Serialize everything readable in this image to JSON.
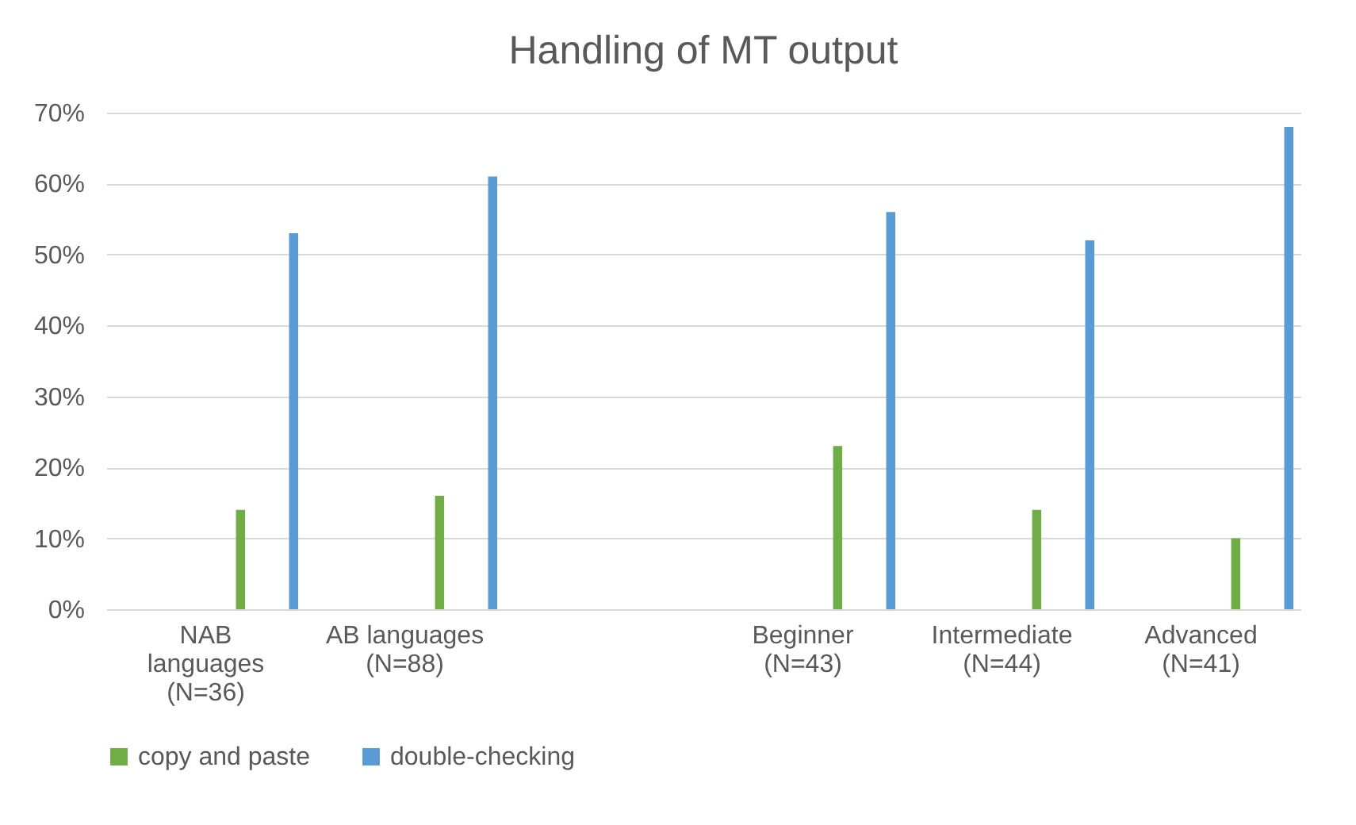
{
  "chart_data": {
    "type": "bar",
    "title": "Handling of MT output",
    "categories": [
      "NAB languages (N=36)",
      "AB languages (N=88)",
      null,
      "Beginner (N=43)",
      "Intermediate (N=44)",
      "Advanced (N=41)"
    ],
    "series": [
      {
        "name": "copy and paste",
        "color": "#70ad47",
        "values": [
          14,
          16,
          null,
          23,
          14,
          10
        ]
      },
      {
        "name": "double-checking",
        "color": "#5b9bd5",
        "values": [
          53,
          61,
          null,
          56,
          52,
          68
        ]
      }
    ],
    "ylim": [
      0,
      70
    ],
    "yticks": [
      {
        "value": 0,
        "label": "0%"
      },
      {
        "value": 10,
        "label": "10%"
      },
      {
        "value": 20,
        "label": "20%"
      },
      {
        "value": 30,
        "label": "30%"
      },
      {
        "value": 40,
        "label": "40%"
      },
      {
        "value": 50,
        "label": "50%"
      },
      {
        "value": 60,
        "label": "60%"
      },
      {
        "value": 70,
        "label": "70%"
      }
    ],
    "grid": "y",
    "legend": "bottom"
  }
}
